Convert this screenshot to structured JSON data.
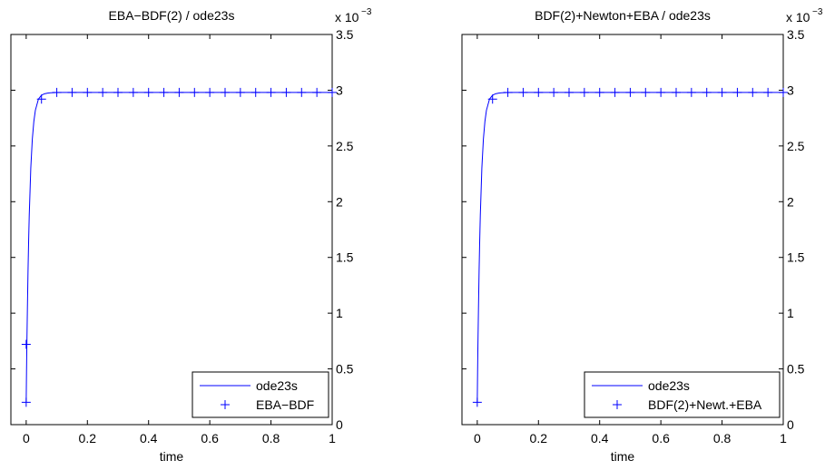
{
  "chart_data": [
    {
      "type": "line",
      "title": "EBA−BDF(2) / ode23s",
      "xlabel": "time",
      "ylabel": "",
      "xlim": [
        -0.05,
        1
      ],
      "ylim": [
        0,
        3.5
      ],
      "y_axis_side": "right",
      "y_exponent_label": "x 10",
      "y_exponent_power": "−3",
      "xticks": [
        0,
        0.2,
        0.4,
        0.6,
        0.8,
        1
      ],
      "xtick_labels": [
        "0",
        "0.2",
        "0.4",
        "0.6",
        "0.8",
        "1"
      ],
      "yticks": [
        0,
        0.5,
        1,
        1.5,
        2,
        2.5,
        3,
        3.5
      ],
      "ytick_labels": [
        "0",
        "0.5",
        "1",
        "1.5",
        "2",
        "2.5",
        "3",
        "3.5"
      ],
      "grid": false,
      "legend_position": "bottom-right",
      "line_color": "#0000ff",
      "series": [
        {
          "name": "ode23s",
          "style": "line",
          "x": [
            0,
            0.001,
            0.002,
            0.004,
            0.006,
            0.008,
            0.01,
            0.015,
            0.02,
            0.025,
            0.03,
            0.04,
            0.05,
            0.06,
            0.07,
            0.08,
            0.1,
            0.12,
            0.15,
            0.2,
            0.3,
            0.5,
            0.7,
            1.0
          ],
          "values": [
            0.2,
            0.45,
            0.68,
            1.05,
            1.38,
            1.65,
            1.88,
            2.3,
            2.56,
            2.72,
            2.82,
            2.92,
            2.955,
            2.968,
            2.974,
            2.977,
            2.979,
            2.98,
            2.98,
            2.98,
            2.98,
            2.98,
            2.98,
            2.98
          ]
        },
        {
          "name": "EBA−BDF",
          "style": "markers",
          "x": [
            0,
            0,
            0.05,
            0.1,
            0.15,
            0.2,
            0.25,
            0.3,
            0.35,
            0.4,
            0.45,
            0.5,
            0.55,
            0.6,
            0.65,
            0.7,
            0.75,
            0.8,
            0.85,
            0.9,
            0.95,
            1.0
          ],
          "values": [
            0.2,
            0.72,
            2.92,
            2.98,
            2.98,
            2.98,
            2.98,
            2.98,
            2.98,
            2.98,
            2.98,
            2.98,
            2.98,
            2.98,
            2.98,
            2.98,
            2.98,
            2.98,
            2.98,
            2.98,
            2.98,
            2.98
          ]
        }
      ]
    },
    {
      "type": "line",
      "title": "BDF(2)+Newton+EBA / ode23s",
      "xlabel": "time",
      "ylabel": "",
      "xlim": [
        -0.05,
        1
      ],
      "ylim": [
        0,
        3.5
      ],
      "y_axis_side": "right",
      "y_exponent_label": "x 10",
      "y_exponent_power": "−3",
      "xticks": [
        0,
        0.2,
        0.4,
        0.6,
        0.8,
        1
      ],
      "xtick_labels": [
        "0",
        "0.2",
        "0.4",
        "0.6",
        "0.8",
        "1"
      ],
      "yticks": [
        0,
        0.5,
        1,
        1.5,
        2,
        2.5,
        3,
        3.5
      ],
      "ytick_labels": [
        "0",
        "0.5",
        "1",
        "1.5",
        "2",
        "2.5",
        "3",
        "3.5"
      ],
      "grid": false,
      "legend_position": "bottom-right",
      "line_color": "#0000ff",
      "series": [
        {
          "name": "ode23s",
          "style": "line",
          "x": [
            0,
            0.001,
            0.002,
            0.004,
            0.006,
            0.008,
            0.01,
            0.015,
            0.02,
            0.025,
            0.03,
            0.04,
            0.05,
            0.06,
            0.07,
            0.08,
            0.1,
            0.12,
            0.15,
            0.2,
            0.3,
            0.5,
            0.7,
            1.0
          ],
          "values": [
            0.2,
            0.45,
            0.68,
            1.05,
            1.38,
            1.65,
            1.88,
            2.3,
            2.56,
            2.72,
            2.82,
            2.92,
            2.955,
            2.968,
            2.974,
            2.977,
            2.979,
            2.98,
            2.98,
            2.98,
            2.98,
            2.98,
            2.98,
            2.98
          ]
        },
        {
          "name": "BDF(2)+Newt.+EBA",
          "style": "markers",
          "x": [
            0,
            0.05,
            0.1,
            0.15,
            0.2,
            0.25,
            0.3,
            0.35,
            0.4,
            0.45,
            0.5,
            0.55,
            0.6,
            0.65,
            0.7,
            0.75,
            0.8,
            0.85,
            0.9,
            0.95,
            1.0
          ],
          "values": [
            0.2,
            2.92,
            2.98,
            2.98,
            2.98,
            2.98,
            2.98,
            2.98,
            2.98,
            2.98,
            2.98,
            2.98,
            2.98,
            2.98,
            2.98,
            2.98,
            2.98,
            2.98,
            2.98,
            2.98,
            2.98
          ]
        }
      ]
    }
  ]
}
